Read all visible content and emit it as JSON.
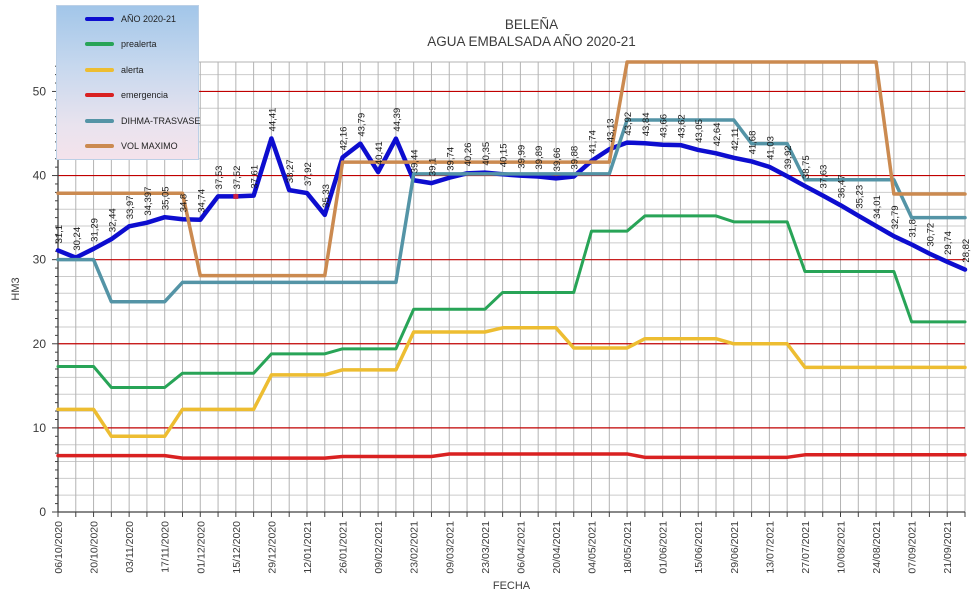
{
  "title": {
    "line1": "BELEÑA",
    "line2": "AGUA EMBALSADA AÑO 2020-21"
  },
  "axes": {
    "y_title": "HM3",
    "x_title": "FECHA"
  },
  "chart_data": {
    "type": "line",
    "title": "BELEÑA AGUA EMBALSADA AÑO 2020-21",
    "xlabel": "FECHA",
    "ylabel": "HM3",
    "ylim": [
      0,
      53.5
    ],
    "y_ticks": [
      0,
      10,
      20,
      30,
      40,
      50
    ],
    "grid": {
      "y_major_every": 10,
      "y_minor_every": 2,
      "x_gridline_every_point": true,
      "major_color": "#c00000",
      "minor_color": "#cbcbcb",
      "vertical_color": "#b3b3b3"
    },
    "legend_position": "top-left",
    "x_dates": [
      "06/10/2020",
      "13/10/2020",
      "20/10/2020",
      "27/10/2020",
      "03/11/2020",
      "10/11/2020",
      "17/11/2020",
      "24/11/2020",
      "01/12/2020",
      "08/12/2020",
      "15/12/2020",
      "22/12/2020",
      "29/12/2020",
      "05/01/2021",
      "12/01/2021",
      "19/01/2021",
      "26/01/2021",
      "02/02/2021",
      "09/02/2021",
      "16/02/2021",
      "23/02/2021",
      "02/03/2021",
      "09/03/2021",
      "16/03/2021",
      "23/03/2021",
      "30/03/2021",
      "06/04/2021",
      "13/04/2021",
      "20/04/2021",
      "27/04/2021",
      "04/05/2021",
      "11/05/2021",
      "18/05/2021",
      "25/05/2021",
      "01/06/2021",
      "08/06/2021",
      "15/06/2021",
      "22/06/2021",
      "29/06/2021",
      "06/07/2021",
      "13/07/2021",
      "20/07/2021",
      "27/07/2021",
      "03/08/2021",
      "10/08/2021",
      "17/08/2021",
      "24/08/2021",
      "31/08/2021",
      "07/09/2021",
      "14/09/2021",
      "21/09/2021",
      "28/09/2021"
    ],
    "x_tick_labels": [
      "06/10/2020",
      "20/10/2020",
      "03/11/2020",
      "17/11/2020",
      "01/12/2020",
      "15/12/2020",
      "29/12/2020",
      "12/01/2021",
      "26/01/2021",
      "09/02/2021",
      "23/02/2021",
      "09/03/2021",
      "23/03/2021",
      "06/04/2021",
      "20/04/2021",
      "04/05/2021",
      "18/05/2021",
      "01/06/2021",
      "15/06/2021",
      "29/06/2021",
      "13/07/2021",
      "27/07/2021",
      "10/08/2021",
      "24/08/2021",
      "07/09/2021",
      "21/09/2021"
    ],
    "series": [
      {
        "name": "AÑO 2020-21",
        "color": "#0d0dcf",
        "width": 4.5,
        "values": [
          31.1,
          30.24,
          31.29,
          32.44,
          33.97,
          34.397,
          35.05,
          34.8,
          34.74,
          37.53,
          37.52,
          37.61,
          44.41,
          38.27,
          37.92,
          35.33,
          42.16,
          43.79,
          40.41,
          44.39,
          39.44,
          39.1,
          39.74,
          40.26,
          40.35,
          40.15,
          39.99,
          39.89,
          39.66,
          39.88,
          41.74,
          43.13,
          43.92,
          43.84,
          43.66,
          43.62,
          43.05,
          42.64,
          42.11,
          41.68,
          41.03,
          39.92,
          38.75,
          37.63,
          36.47,
          35.23,
          34.01,
          32.79,
          31.8,
          30.72,
          29.74,
          28.82
        ],
        "point_labels": [
          "31,1",
          "30,24",
          "31,29",
          "32,44",
          "33,97",
          "34,397",
          "35,05",
          "34,8",
          "34,74",
          "37,53",
          "37,52",
          "37,61",
          "44,41",
          "38,27",
          "37,92",
          "35,33",
          "42,16",
          "43,79",
          "40,41",
          "44,39",
          "39,44",
          "39,1",
          "39,74",
          "40,26",
          "40,35",
          "40,15",
          "39,99",
          "39,89",
          "39,66",
          "39,88",
          "41,74",
          "43,13",
          "43,92",
          "43,84",
          "43,66",
          "43,62",
          "43,05",
          "42,64",
          "42,11",
          "41,68",
          "41,03",
          "39,92",
          "38,75",
          "37,63",
          "36,47",
          "35,23",
          "34,01",
          "32,79",
          "31,8",
          "30,72",
          "29,74",
          "28,82"
        ],
        "marker": {
          "index": 10,
          "color": "#cc2244"
        }
      },
      {
        "name": "prealerta",
        "color": "#28a457",
        "width": 3,
        "values": [
          17.3,
          17.3,
          17.3,
          14.8,
          14.8,
          14.8,
          14.8,
          16.5,
          16.5,
          16.5,
          16.5,
          16.5,
          18.8,
          18.8,
          18.8,
          18.8,
          19.4,
          19.4,
          19.4,
          19.4,
          24.1,
          24.1,
          24.1,
          24.1,
          24.1,
          26.1,
          26.1,
          26.1,
          26.1,
          26.1,
          33.4,
          33.4,
          33.4,
          35.2,
          35.2,
          35.2,
          35.2,
          35.2,
          34.5,
          34.5,
          34.5,
          34.5,
          28.6,
          28.6,
          28.6,
          28.6,
          28.6,
          28.6,
          22.6,
          22.6,
          22.6,
          22.6
        ]
      },
      {
        "name": "alerta",
        "color": "#edbd31",
        "width": 3.5,
        "values": [
          12.2,
          12.2,
          12.2,
          9.0,
          9.0,
          9.0,
          9.0,
          12.2,
          12.2,
          12.2,
          12.2,
          12.2,
          16.3,
          16.3,
          16.3,
          16.3,
          16.9,
          16.9,
          16.9,
          16.9,
          21.4,
          21.4,
          21.4,
          21.4,
          21.4,
          21.9,
          21.9,
          21.9,
          21.9,
          19.5,
          19.5,
          19.5,
          19.5,
          20.6,
          20.6,
          20.6,
          20.6,
          20.6,
          20.0,
          20.0,
          20.0,
          20.0,
          17.2,
          17.2,
          17.2,
          17.2,
          17.2,
          17.2,
          17.2,
          17.2,
          17.2,
          17.2
        ]
      },
      {
        "name": "emergencia",
        "color": "#d92121",
        "width": 3.5,
        "values": [
          6.7,
          6.7,
          6.7,
          6.7,
          6.7,
          6.7,
          6.7,
          6.4,
          6.4,
          6.4,
          6.4,
          6.4,
          6.4,
          6.4,
          6.4,
          6.4,
          6.6,
          6.6,
          6.6,
          6.6,
          6.6,
          6.6,
          6.9,
          6.9,
          6.9,
          6.9,
          6.9,
          6.9,
          6.9,
          6.9,
          6.9,
          6.9,
          6.9,
          6.5,
          6.5,
          6.5,
          6.5,
          6.5,
          6.5,
          6.5,
          6.5,
          6.5,
          6.8,
          6.8,
          6.8,
          6.8,
          6.8,
          6.8,
          6.8,
          6.8,
          6.8,
          6.8
        ]
      },
      {
        "name": "DIHMA-TRASVASE",
        "color": "#5494a6",
        "width": 3.5,
        "values": [
          30.0,
          30.0,
          30.0,
          25.0,
          25.0,
          25.0,
          25.0,
          27.3,
          27.3,
          27.3,
          27.3,
          27.3,
          27.3,
          27.3,
          27.3,
          27.3,
          27.3,
          27.3,
          27.3,
          27.3,
          40.2,
          40.2,
          40.2,
          40.2,
          40.2,
          40.2,
          40.2,
          40.2,
          40.2,
          40.2,
          40.2,
          40.2,
          46.6,
          46.6,
          46.6,
          46.6,
          46.6,
          46.6,
          46.6,
          43.8,
          43.8,
          43.8,
          39.5,
          39.5,
          39.5,
          39.5,
          39.5,
          39.5,
          35.0,
          35.0,
          35.0,
          35.0
        ]
      },
      {
        "name": "VOL MAXIMO",
        "color": "#cb8a50",
        "width": 3.5,
        "values": [
          37.9,
          37.9,
          37.9,
          37.9,
          37.9,
          37.9,
          37.9,
          37.9,
          28.1,
          28.1,
          28.1,
          28.1,
          28.1,
          28.1,
          28.1,
          28.1,
          41.6,
          41.6,
          41.6,
          41.6,
          41.6,
          41.6,
          41.6,
          41.6,
          41.6,
          41.6,
          41.6,
          41.6,
          41.6,
          41.6,
          41.6,
          41.6,
          53.5,
          53.5,
          53.5,
          53.5,
          53.5,
          53.5,
          53.5,
          53.5,
          53.5,
          53.5,
          53.5,
          53.5,
          53.5,
          53.5,
          53.5,
          37.8,
          37.8,
          37.8,
          37.8,
          37.8
        ]
      }
    ]
  }
}
